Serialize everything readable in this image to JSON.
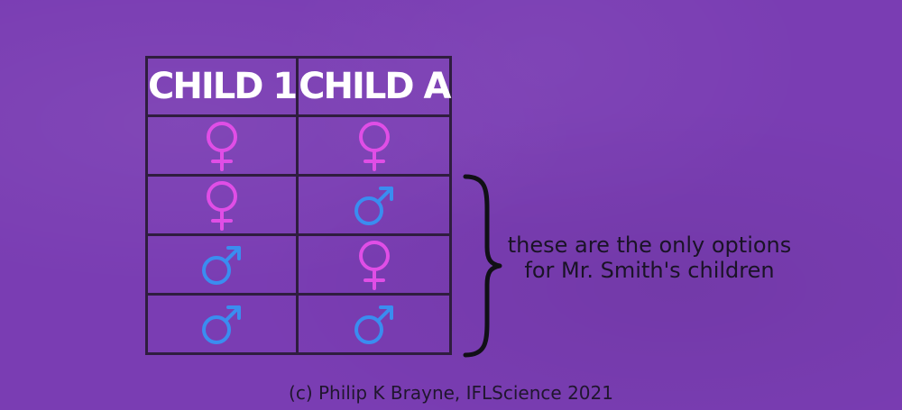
{
  "table": {
    "headers": [
      "CHILD 1",
      "CHILD A"
    ],
    "rows": [
      [
        "female",
        "female"
      ],
      [
        "female",
        "male"
      ],
      [
        "male",
        "female"
      ],
      [
        "male",
        "male"
      ]
    ]
  },
  "annotation": "these are the only options for Mr. Smith's children",
  "credit": "(c) Philip K Brayne, IFLScience 2021",
  "colors": {
    "background": "#7a3db3",
    "female": "#e04ee6",
    "male": "#3a8df0",
    "grid": "#2f1d3f"
  },
  "icons": {
    "female": "female-symbol-icon",
    "male": "male-symbol-icon"
  }
}
